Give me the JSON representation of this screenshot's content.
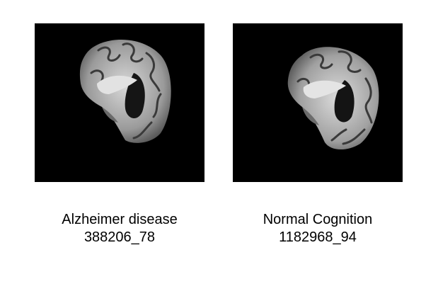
{
  "panels": [
    {
      "diagnosis": "Alzheimer disease",
      "subject_id": "388206_78"
    },
    {
      "diagnosis": "Normal Cognition",
      "subject_id": "1182968_94"
    }
  ],
  "colors": {
    "background": "#ffffff",
    "scan_background": "#000000",
    "text": "#000000"
  }
}
